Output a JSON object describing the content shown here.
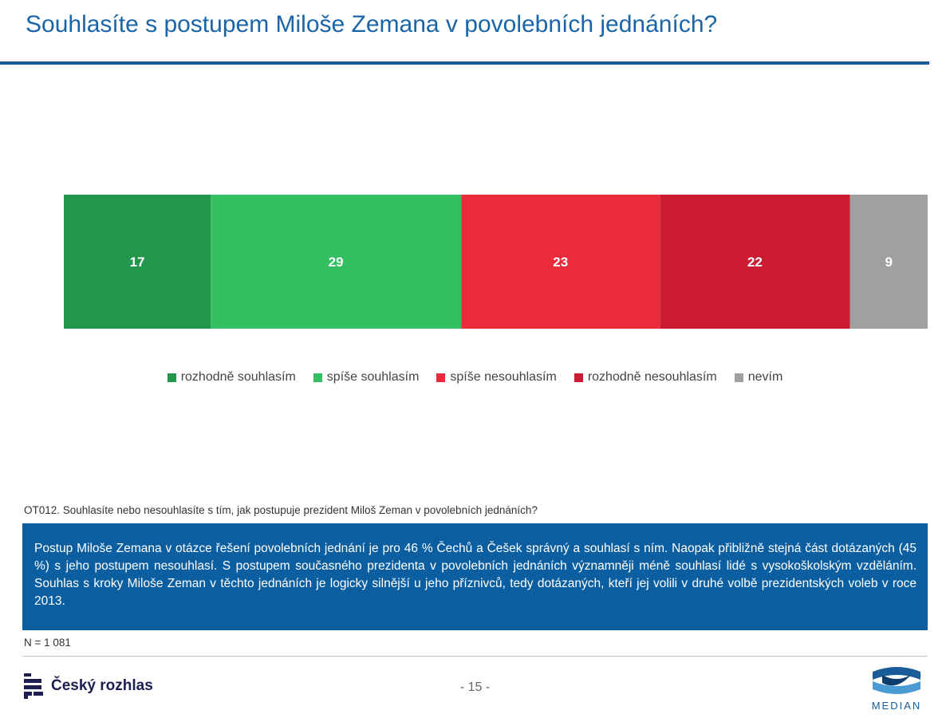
{
  "title": "Souhlasíte s postupem Miloše Zemana v povolebních jednáních?",
  "chart_data": {
    "type": "bar",
    "orientation": "horizontal-stacked-100",
    "categories": [
      ""
    ],
    "series": [
      {
        "name": "rozhodně souhlasím",
        "values": [
          17
        ],
        "color": "#23974b"
      },
      {
        "name": "spíše souhlasím",
        "values": [
          29
        ],
        "color": "#33bf62"
      },
      {
        "name": "spíše nesouhlasím",
        "values": [
          23
        ],
        "color": "#ea2b3b"
      },
      {
        "name": "rozhodně nesouhlasím",
        "values": [
          22
        ],
        "color": "#cc1c32"
      },
      {
        "name": "nevím",
        "values": [
          9
        ],
        "color": "#a0a0a0"
      }
    ],
    "xlim": [
      0,
      100
    ],
    "data_labels": true,
    "legend": "bottom",
    "grid": false
  },
  "question": "OT012. Souhlasíte nebo nesouhlasíte s tím, jak postupuje prezident Miloš Zeman v povolebních jednáních?",
  "summary": "Postup Miloše Zemana v otázce řešení povolebních jednání je pro 46 % Čechů a Češek správný a souhlasí s ním. Naopak přibližně stejná část dotázaných (45 %) s jeho postupem nesouhlasí. S postupem současného prezidenta v povolebních jednáních významněji méně souhlasí lidé s vysokoškolským vzděláním. Souhlas s kroky Miloše Zeman v těchto jednáních je logicky silnější u jeho příznivců, tedy dotázaných, kteří jej volili v druhé volbě prezidentských voleb v roce 2013.",
  "sample": "N = 1 081",
  "page_number": "- 15 -",
  "logos": {
    "left": {
      "name": "Český rozhlas",
      "icon": "cesky-rozhlas-logo-icon"
    },
    "right": {
      "name": "MEDIAN",
      "icon": "median-logo-icon"
    }
  },
  "colors": {
    "title": "#1a64a8",
    "accent": "#0b5fa0"
  }
}
